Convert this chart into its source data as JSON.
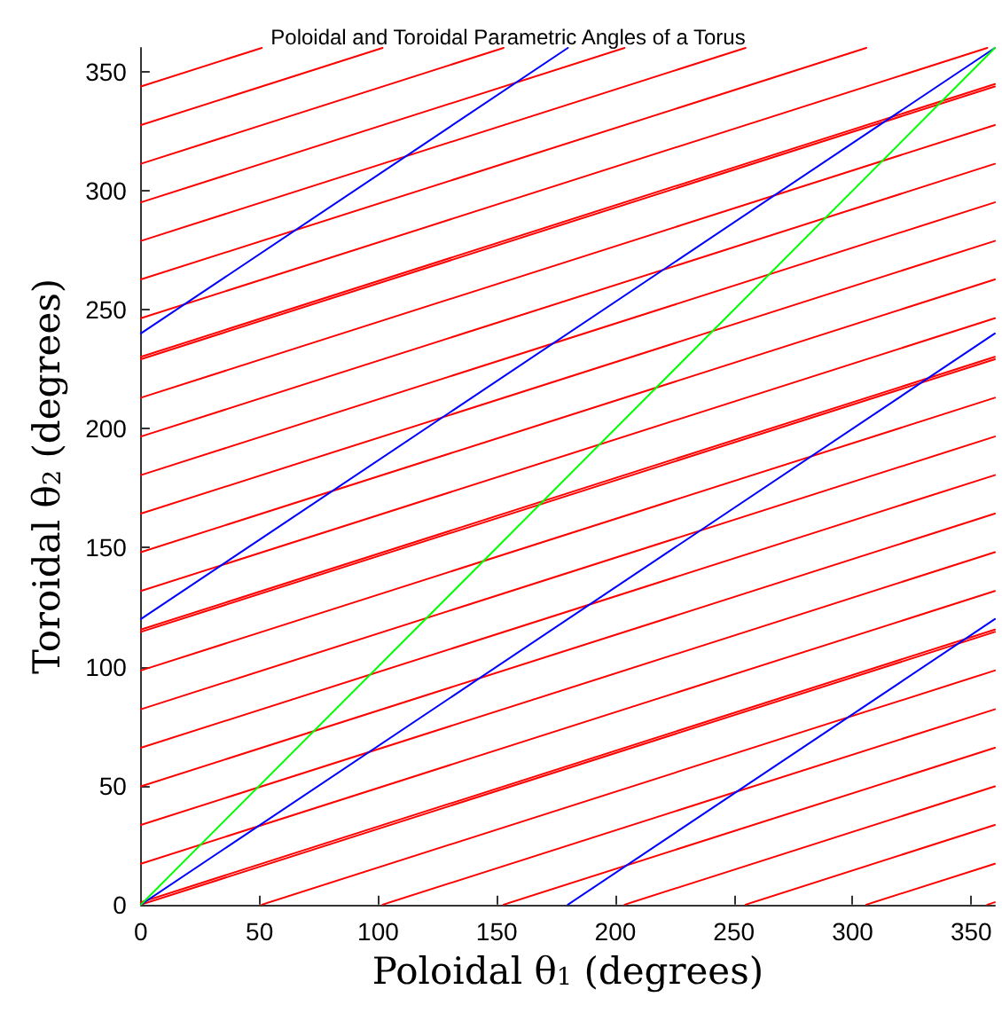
{
  "chart_data": {
    "type": "line",
    "title": "Poloidal and Toroidal Parametric Angles of a Torus",
    "xlabel": "Poloidal θ$_{1}$ (degrees)",
    "ylabel": "Toroidal θ$_{2}$ (degrees)",
    "xlim": [
      0,
      360
    ],
    "ylim": [
      0,
      360
    ],
    "xticks": [
      0,
      50,
      100,
      150,
      200,
      250,
      300,
      350
    ],
    "yticks": [
      0,
      50,
      100,
      150,
      200,
      250,
      300,
      350
    ],
    "grid": false,
    "marker": "none",
    "line_style": "solid",
    "series": [
      {
        "color": "#ff0000",
        "x": [
          0,
          360
        ],
        "values": [
          0,
          114.6
        ]
      },
      {
        "color": "#ff0000",
        "x": [
          0,
          360
        ],
        "values": [
          114.6,
          229.2
        ]
      },
      {
        "color": "#ff0000",
        "x": [
          0,
          360
        ],
        "values": [
          229.2,
          343.8
        ]
      },
      {
        "color": "#ff0000",
        "x": [
          0,
          51.0
        ],
        "values": [
          343.8,
          360
        ]
      },
      {
        "color": "#ff0000",
        "x": [
          51.0,
          360
        ],
        "values": [
          0,
          98.4
        ]
      },
      {
        "color": "#ff0000",
        "x": [
          0,
          360
        ],
        "values": [
          98.4,
          213.0
        ]
      },
      {
        "color": "#ff0000",
        "x": [
          0,
          360
        ],
        "values": [
          213.0,
          327.6
        ]
      },
      {
        "color": "#ff0000",
        "x": [
          0,
          101.9
        ],
        "values": [
          327.6,
          360
        ]
      },
      {
        "color": "#ff0000",
        "x": [
          101.9,
          360
        ],
        "values": [
          0,
          82.1
        ]
      },
      {
        "color": "#ff0000",
        "x": [
          0,
          360
        ],
        "values": [
          82.1,
          196.7
        ]
      },
      {
        "color": "#ff0000",
        "x": [
          0,
          360
        ],
        "values": [
          196.7,
          311.3
        ]
      },
      {
        "color": "#ff0000",
        "x": [
          0,
          152.9
        ],
        "values": [
          311.3,
          360
        ]
      },
      {
        "color": "#ff0000",
        "x": [
          152.9,
          360
        ],
        "values": [
          0,
          65.9
        ]
      },
      {
        "color": "#ff0000",
        "x": [
          0,
          360
        ],
        "values": [
          65.9,
          180.5
        ]
      },
      {
        "color": "#ff0000",
        "x": [
          0,
          360
        ],
        "values": [
          180.5,
          295.1
        ]
      },
      {
        "color": "#ff0000",
        "x": [
          0,
          203.9
        ],
        "values": [
          295.1,
          360
        ]
      },
      {
        "color": "#ff0000",
        "x": [
          203.9,
          360
        ],
        "values": [
          0,
          49.7
        ]
      },
      {
        "color": "#ff0000",
        "x": [
          0,
          360
        ],
        "values": [
          49.7,
          164.3
        ]
      },
      {
        "color": "#ff0000",
        "x": [
          0,
          360
        ],
        "values": [
          164.3,
          278.9
        ]
      },
      {
        "color": "#ff0000",
        "x": [
          0,
          254.9
        ],
        "values": [
          278.9,
          360
        ]
      },
      {
        "color": "#ff0000",
        "x": [
          254.9,
          360
        ],
        "values": [
          0,
          33.5
        ]
      },
      {
        "color": "#ff0000",
        "x": [
          0,
          360
        ],
        "values": [
          33.5,
          148.1
        ]
      },
      {
        "color": "#ff0000",
        "x": [
          0,
          360
        ],
        "values": [
          148.1,
          262.7
        ]
      },
      {
        "color": "#ff0000",
        "x": [
          0,
          305.8
        ],
        "values": [
          262.7,
          360
        ]
      },
      {
        "color": "#ff0000",
        "x": [
          305.8,
          360
        ],
        "values": [
          0,
          17.2
        ]
      },
      {
        "color": "#ff0000",
        "x": [
          0,
          360
        ],
        "values": [
          17.2,
          131.8
        ]
      },
      {
        "color": "#ff0000",
        "x": [
          0,
          360
        ],
        "values": [
          131.8,
          246.4
        ]
      },
      {
        "color": "#ff0000",
        "x": [
          0,
          356.8
        ],
        "values": [
          246.4,
          360
        ]
      },
      {
        "color": "#ff0000",
        "x": [
          356.8,
          360
        ],
        "values": [
          0,
          1.0
        ]
      },
      {
        "color": "#ff0000",
        "x": [
          0,
          360
        ],
        "values": [
          1.0,
          115.6
        ]
      },
      {
        "color": "#ff0000",
        "x": [
          0,
          360
        ],
        "values": [
          115.6,
          230.2
        ]
      },
      {
        "color": "#ff0000",
        "x": [
          0,
          360
        ],
        "values": [
          230.2,
          344.8
        ]
      },
      {
        "color": "#0000ff",
        "x": [
          0,
          360
        ],
        "values": [
          0,
          240
        ]
      },
      {
        "color": "#0000ff",
        "x": [
          0,
          360
        ],
        "values": [
          120,
          360
        ]
      },
      {
        "color": "#0000ff",
        "x": [
          0,
          180
        ],
        "values": [
          240,
          360
        ]
      },
      {
        "color": "#0000ff",
        "x": [
          180,
          360
        ],
        "values": [
          0,
          120
        ]
      },
      {
        "color": "#00ff00",
        "x": [
          0,
          360
        ],
        "values": [
          0,
          360
        ]
      }
    ]
  }
}
